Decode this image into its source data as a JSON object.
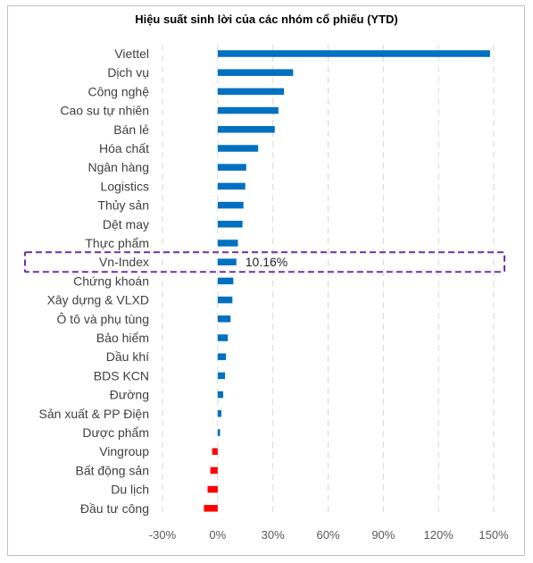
{
  "chart_data": {
    "type": "bar",
    "orientation": "horizontal",
    "title": "Hiệu suất sinh lời của các nhóm cổ phiếu (YTD)",
    "categories": [
      "Viettel",
      "Dịch vụ",
      "Công nghệ",
      "Cao su tự nhiên",
      "Bán lẻ",
      "Hóa chất",
      "Ngân hàng",
      "Logistics",
      "Thủy sản",
      "Dệt may",
      "Thực phẩm",
      "Vn-Index",
      "Chứng khoán",
      "Xây dựng & VLXD",
      "Ô tô và phụ tùng",
      "Bảo hiểm",
      "Dầu khí",
      "BDS KCN",
      "Đường",
      "Sản xuất & PP Điện",
      "Dược phẩm",
      "Vingroup",
      "Bất động sản",
      "Du lịch",
      "Đầu tư công"
    ],
    "values": [
      148,
      41,
      36,
      33,
      31,
      22,
      15.5,
      15,
      14,
      13.5,
      11,
      10.16,
      8.5,
      8,
      7,
      5.5,
      4.5,
      4,
      3,
      2,
      1.3,
      -3,
      -4,
      -5.5,
      -7.5
    ],
    "xlim": [
      -30,
      150
    ],
    "xticks": [
      "-30%",
      "0%",
      "30%",
      "60%",
      "90%",
      "120%",
      "150%"
    ],
    "grid": true,
    "highlight": {
      "category": "Vn-Index",
      "label": "10.16%",
      "color": "#7030a0"
    },
    "colors": {
      "positive": "#0070c0",
      "negative": "#ff0000"
    }
  }
}
